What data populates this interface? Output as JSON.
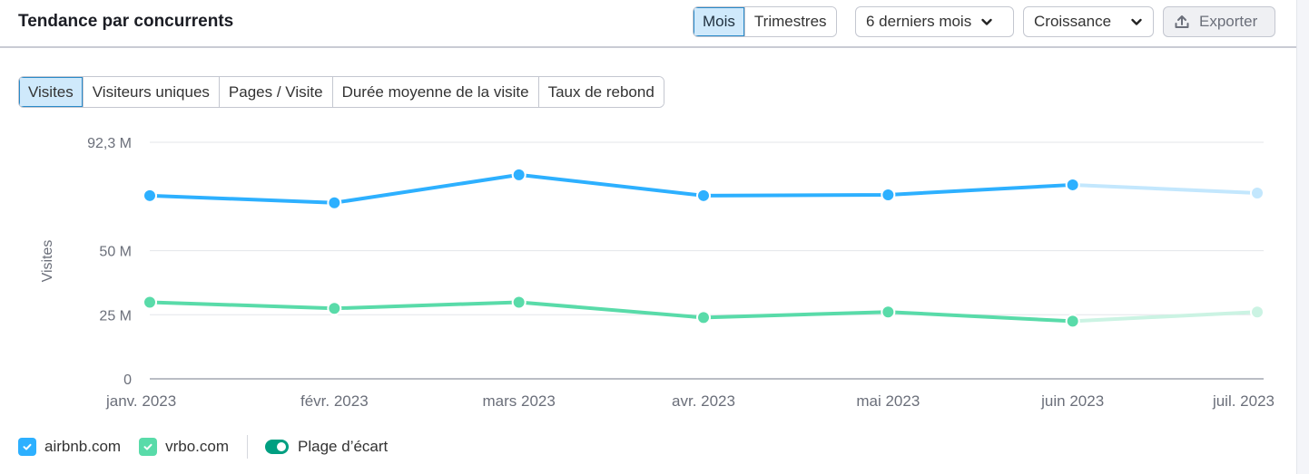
{
  "header": {
    "title": "Tendance par concurrents",
    "granularity": {
      "options": [
        "Mois",
        "Trimestres"
      ],
      "selected": "Mois"
    },
    "period_dropdown": "6 derniers mois",
    "mode_dropdown": "Croissance",
    "export_label": "Exporter",
    "icons": {
      "period_chevron": "chevron-down-icon",
      "mode_chevron": "chevron-down-icon",
      "export": "upload-icon"
    }
  },
  "metric_tabs": {
    "items": [
      "Visites",
      "Visiteurs uniques",
      "Pages / Visite",
      "Durée moyenne de la visite",
      "Taux de rebond"
    ],
    "selected": "Visites"
  },
  "legend": {
    "items": [
      {
        "label": "airbnb.com",
        "checked": true,
        "color": "#2db0ff"
      },
      {
        "label": "vrbo.com",
        "checked": true,
        "color": "#59dba9"
      }
    ],
    "toggle_label": "Plage d’écart",
    "toggle_on": true,
    "toggle_color": "#009f81"
  },
  "colors": {
    "airbnb": "#2db0ff",
    "airbnb_faded": "#c3e7fd",
    "vrbo": "#59dba9",
    "vrbo_faded": "#cbf3e3",
    "grid": "#e3e5ea",
    "axis": "#a3a7b0",
    "active_tab_bg": "#cfe9fb",
    "active_tab_border": "#2a8ac8"
  },
  "chart_data": {
    "type": "line",
    "title": "Tendance par concurrents",
    "xlabel": "",
    "ylabel": "Visites",
    "x": [
      "janv. 2023",
      "févr. 2023",
      "mars 2023",
      "avr. 2023",
      "mai 2023",
      "juin 2023",
      "juil. 2023"
    ],
    "y_ticks": [
      {
        "value": 0,
        "label": "0"
      },
      {
        "value": 25,
        "label": "25 M"
      },
      {
        "value": 50,
        "label": "50 M"
      },
      {
        "value": 92.3,
        "label": "92,3 M"
      }
    ],
    "ylim": [
      0,
      92.3
    ],
    "units": "M",
    "grid": true,
    "legend_position": "bottom-left",
    "series": [
      {
        "name": "airbnb.com",
        "values": [
          71.5,
          68.7,
          79.6,
          71.5,
          71.8,
          75.7,
          72.5
        ],
        "faded_from_index": 5
      },
      {
        "name": "vrbo.com",
        "values": [
          29.9,
          27.5,
          29.9,
          23.9,
          26.1,
          22.5,
          26.1
        ],
        "faded_from_index": 5
      }
    ]
  }
}
